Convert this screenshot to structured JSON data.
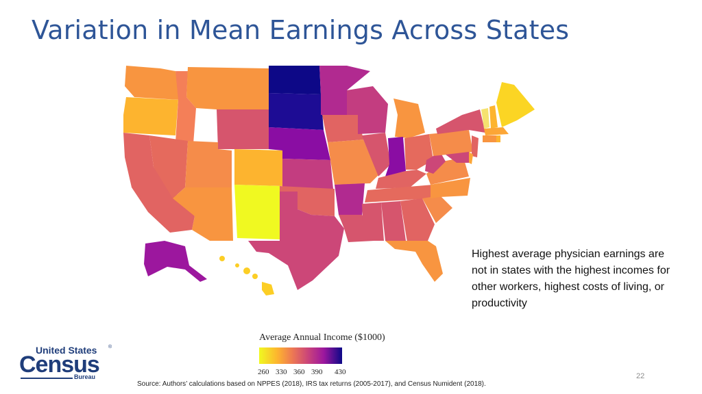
{
  "title": "Variation in Mean Earnings Across States",
  "note": "Highest average physician earnings are not in states with the highest incomes for other workers, highest costs of living, or productivity",
  "legend": {
    "title": "Average Annual Income ($1000)",
    "ticks": [
      "260",
      "330",
      "360",
      "390",
      "430"
    ]
  },
  "colors": {
    "title": "#2e5597",
    "scale_low": "#f0f921",
    "scale_mid_low": "#fca636",
    "scale_mid": "#e16462",
    "scale_mid_high": "#b12a90",
    "scale_high": "#0d0887"
  },
  "logo": {
    "line1": "United States",
    "line2": "Census",
    "line3": "Bureau",
    "reg": "®"
  },
  "source": "Source: Authors’ calculations based on NPPES (2018), IRS tax returns (2005-2017), and Census Numident (2018).",
  "page_number": "22"
}
